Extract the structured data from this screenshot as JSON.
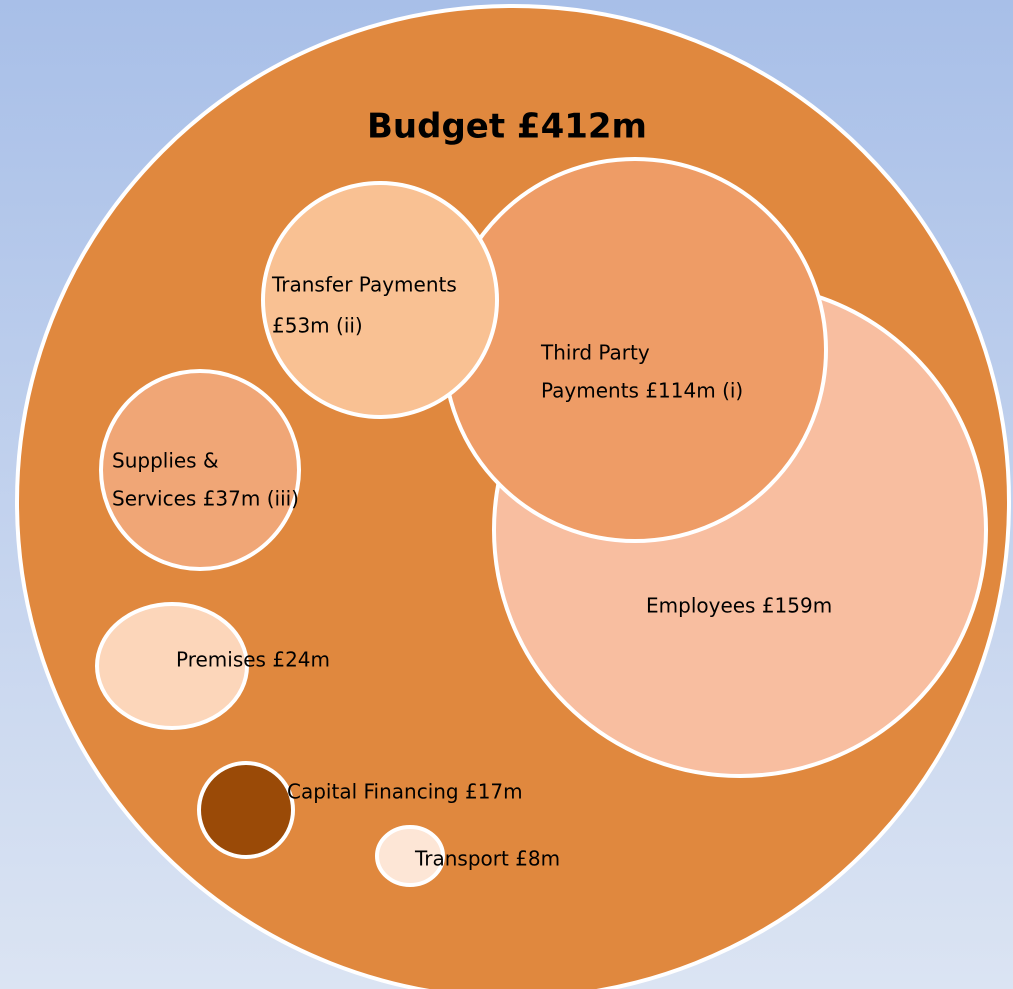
{
  "title": "Budget £412m",
  "nodes": [
    {
      "label_lines": [
        "Employees £159m"
      ]
    },
    {
      "label_lines": [
        "Third Party",
        "Payments £114m (i)"
      ]
    },
    {
      "label_lines": [
        "Transfer Payments",
        "£53m (ii)"
      ]
    },
    {
      "label_lines": [
        "Supplies &",
        "Services £37m (iii)"
      ]
    },
    {
      "label_lines": [
        "Premises £24m"
      ]
    },
    {
      "label_lines": [
        "Capital Financing £17m"
      ]
    },
    {
      "label_lines": [
        "Transport £8m"
      ]
    }
  ]
}
